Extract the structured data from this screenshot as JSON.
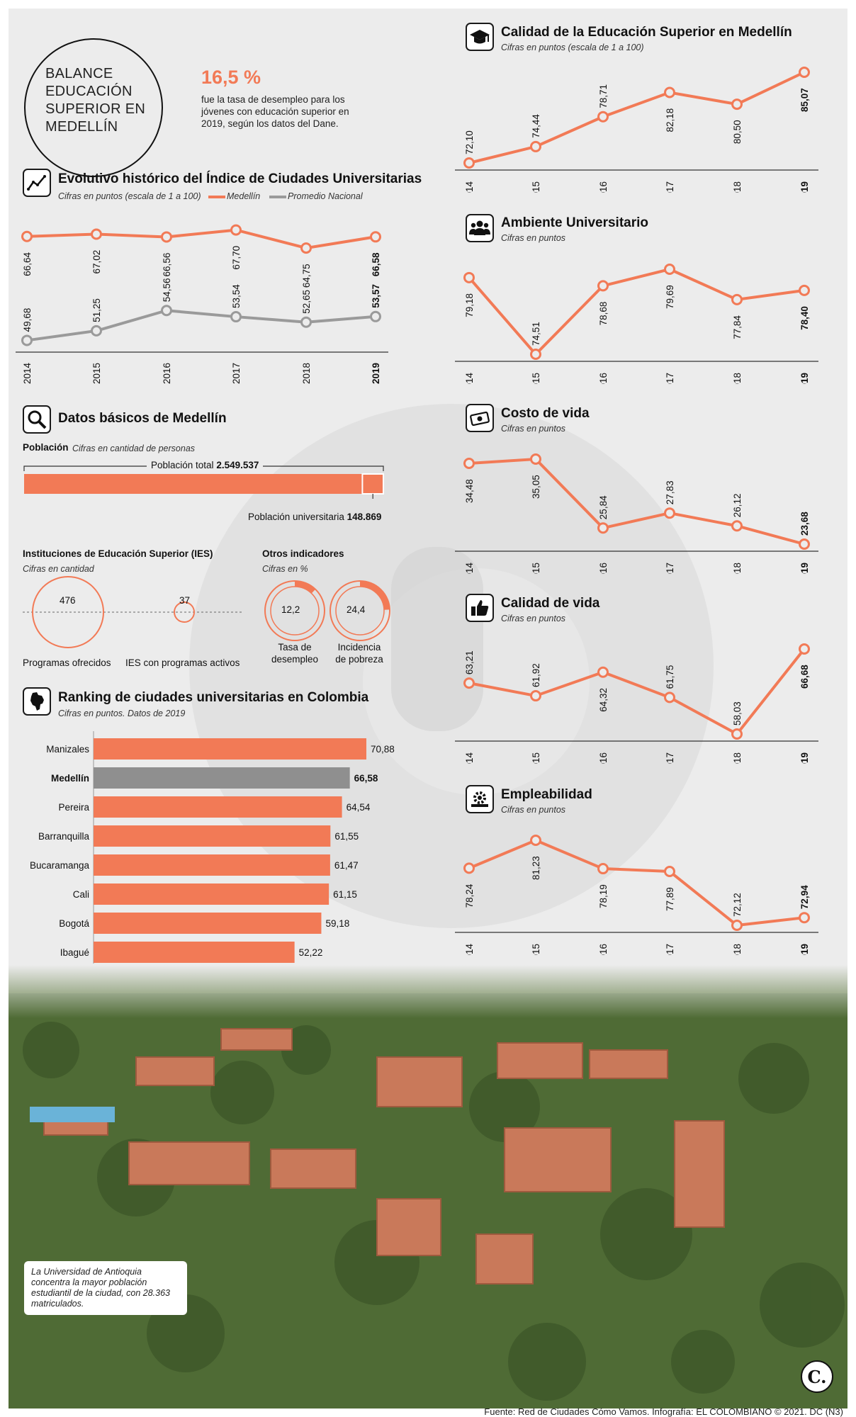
{
  "banner": {
    "title": "BALANCE EDUCACIÓN SUPERIOR EN MEDELLÍN"
  },
  "highlight": {
    "value": "16,5 %",
    "text": "fue la tasa de desempleo para los jóvenes con educación superior en 2019, según los datos del Dane."
  },
  "colors": {
    "accent": "#f27a56",
    "gray": "#9a9a9a",
    "panel": "#ececec"
  },
  "charts": {
    "calidad": {
      "icon": "graduation-cap-icon",
      "title": "Calidad de la Educación Superior en Medellín",
      "subtitle": "Cifras en puntos (escala de 1 a 100)",
      "labels": [
        "72,10",
        "74,44",
        "78,71",
        "82,18",
        "80,50",
        "85,07"
      ]
    },
    "ambiente": {
      "icon": "people-icon",
      "title": "Ambiente Universitario",
      "subtitle": "Cifras en puntos",
      "labels": [
        "79,18",
        "74,51",
        "78,68",
        "79,69",
        "77,84",
        "78,40"
      ]
    },
    "costo": {
      "icon": "money-icon",
      "title": "Costo de vida",
      "subtitle": "Cifras en puntos",
      "labels": [
        "34,48",
        "35,05",
        "25,84",
        "27,83",
        "26,12",
        "23,68"
      ]
    },
    "calidadvida": {
      "icon": "thumbs-up-icon",
      "title": "Calidad de vida",
      "subtitle": "Cifras en puntos",
      "labels": [
        "63,21",
        "61,92",
        "64,32",
        "61,75",
        "58,03",
        "66,68"
      ]
    },
    "empleabilidad": {
      "icon": "gears-icon",
      "title": "Empleabilidad",
      "subtitle": "Cifras en puntos",
      "labels": [
        "78,24",
        "81,23",
        "78,19",
        "77,89",
        "72,12",
        "72,94"
      ]
    },
    "evolutivo": {
      "icon": "trend-line-icon",
      "title": "Evolutivo histórico del Índice de Ciudades Universitarias",
      "subtitle": "Cifras en puntos (escala de 1 a 100)",
      "legend": [
        "Medellín",
        "Promedio Nacional"
      ],
      "labels_medellin": [
        "66,64",
        "67,02",
        "66,56",
        "67,70",
        "64,75",
        "66,58"
      ],
      "labels_nacional": [
        "49,68",
        "51,25",
        "54,56",
        "53,54",
        "52,65",
        "53,57"
      ]
    },
    "ranking": {
      "icon": "colombia-map-icon",
      "title": "Ranking de ciudades universitarias en Colombia",
      "subtitle": "Cifras en puntos. Datos de 2019",
      "labels": [
        "70,88",
        "66,58",
        "64,54",
        "61,55",
        "61,47",
        "61,15",
        "59,18",
        "52,22"
      ]
    }
  },
  "datos": {
    "icon": "magnifier-icon",
    "title": "Datos básicos de Medellín",
    "poblacion_label": "Población",
    "poblacion_sub": "Cifras en cantidad de personas",
    "total_label": "Población total",
    "total_value": "2.549.537",
    "uni_label": "Población universitaria",
    "uni_value": "148.869",
    "total": 2549537,
    "universitaria": 148869,
    "ies_title": "Instituciones de Educación Superior (IES)",
    "ies_sub": "Cifras en cantidad",
    "programas_value": "476",
    "programas_label": "Programas ofrecidos",
    "ies_value": "37",
    "ies_label": "IES con programas activos",
    "otros_title": "Otros indicadores",
    "otros_sub": "Cifras en %",
    "desempleo_value": "12,2",
    "desempleo_label_1": "Tasa de",
    "desempleo_label_2": "desempleo",
    "desempleo": 12.2,
    "pobreza_value": "24,4",
    "pobreza_label_1": "Incidencia",
    "pobreza_label_2": "de pobreza",
    "pobreza": 24.4
  },
  "photo": {
    "caption": "La Universidad de Antioquia concentra la mayor población estudiantil de la ciudad, con 28.363 matriculados."
  },
  "footer": {
    "source": "Fuente: Red de Ciudades Cómo Vamos. Infografía: EL COLOMBIANO © 2021. DC (N3)",
    "logo": "C."
  },
  "chart_data": [
    {
      "id": "calidad",
      "type": "line",
      "title": "Calidad de la Educación Superior en Medellín",
      "x": [
        "2014",
        "2015",
        "2016",
        "2017",
        "2018",
        "2019"
      ],
      "values": [
        72.1,
        74.44,
        78.71,
        82.18,
        80.5,
        85.07
      ]
    },
    {
      "id": "ambiente",
      "type": "line",
      "title": "Ambiente Universitario",
      "x": [
        "2014",
        "2015",
        "2016",
        "2017",
        "2018",
        "2019"
      ],
      "values": [
        79.18,
        74.51,
        78.68,
        79.69,
        77.84,
        78.4
      ]
    },
    {
      "id": "costo",
      "type": "line",
      "title": "Costo de vida",
      "x": [
        "2014",
        "2015",
        "2016",
        "2017",
        "2018",
        "2019"
      ],
      "values": [
        34.48,
        35.05,
        25.84,
        27.83,
        26.12,
        23.68
      ]
    },
    {
      "id": "calidadvida",
      "type": "line",
      "title": "Calidad de vida",
      "x": [
        "2014",
        "2015",
        "2016",
        "2017",
        "2018",
        "2019"
      ],
      "values": [
        63.21,
        61.92,
        64.32,
        61.75,
        58.03,
        66.68
      ]
    },
    {
      "id": "empleabilidad",
      "type": "line",
      "title": "Empleabilidad",
      "x": [
        "2014",
        "2015",
        "2016",
        "2017",
        "2018",
        "2019"
      ],
      "values": [
        78.24,
        81.23,
        78.19,
        77.89,
        72.12,
        72.94
      ]
    },
    {
      "id": "evolutivo",
      "type": "line",
      "title": "Evolutivo histórico del Índice de Ciudades Universitarias",
      "x": [
        "2014",
        "2015",
        "2016",
        "2017",
        "2018",
        "2019"
      ],
      "series": [
        {
          "name": "Medellín",
          "values": [
            66.64,
            67.02,
            66.56,
            67.7,
            64.75,
            66.58
          ]
        },
        {
          "name": "Promedio Nacional",
          "values": [
            49.68,
            51.25,
            54.56,
            53.54,
            52.65,
            53.57
          ]
        }
      ]
    },
    {
      "id": "ranking",
      "type": "bar",
      "title": "Ranking de ciudades universitarias en Colombia",
      "categories": [
        "Manizales",
        "Medellín",
        "Pereira",
        "Barranquilla",
        "Bucaramanga",
        "Cali",
        "Bogotá",
        "Ibagué"
      ],
      "values": [
        70.88,
        66.58,
        64.54,
        61.55,
        61.47,
        61.15,
        59.18,
        52.22
      ]
    }
  ]
}
